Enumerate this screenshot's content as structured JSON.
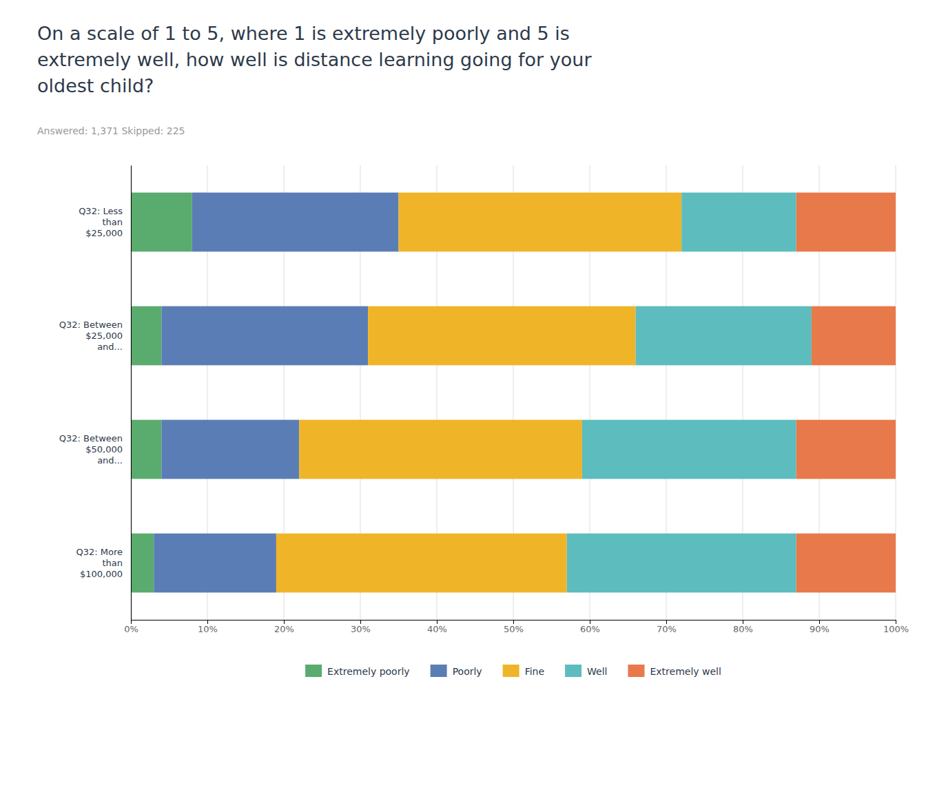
{
  "chart_data": {
    "type": "bar",
    "orientation": "horizontal",
    "stacked": true,
    "title": "On a scale of 1 to 5, where 1 is extremely poorly and 5 is\nextremely well, how well is distance learning going for your\noldest child?",
    "subtitle": "Answered: 1,371    Skipped: 225",
    "categories": [
      "Q32: Less\nthan\n$25,000",
      "Q32: Between\n$25,000\nand...",
      "Q32: Between\n$50,000\nand...",
      "Q32: More\nthan\n$100,000"
    ],
    "series": [
      {
        "name": "Extremely poorly",
        "color": "#5aab6e",
        "values": [
          8.0,
          4.0,
          4.0,
          3.0
        ]
      },
      {
        "name": "Poorly",
        "color": "#5a7db5",
        "values": [
          27.0,
          27.0,
          18.0,
          16.0
        ]
      },
      {
        "name": "Fine",
        "color": "#f0b429",
        "values": [
          37.0,
          35.0,
          37.0,
          38.0
        ]
      },
      {
        "name": "Well",
        "color": "#5dbcbe",
        "values": [
          15.0,
          23.0,
          28.0,
          30.0
        ]
      },
      {
        "name": "Extremely well",
        "color": "#e8794a",
        "values": [
          13.0,
          11.0,
          13.0,
          13.0
        ]
      }
    ],
    "xlim": [
      0,
      100
    ],
    "xticks": [
      {
        "value": 0,
        "label": "0%"
      },
      {
        "value": 10,
        "label": "10%"
      },
      {
        "value": 20,
        "label": "20%"
      },
      {
        "value": 30,
        "label": "30%"
      },
      {
        "value": 40,
        "label": "40%"
      },
      {
        "value": 50,
        "label": "50%"
      },
      {
        "value": 60,
        "label": "60%"
      },
      {
        "value": 70,
        "label": "70%"
      },
      {
        "value": 80,
        "label": "80%"
      },
      {
        "value": 90,
        "label": "90%"
      },
      {
        "value": 100,
        "label": "100%"
      }
    ],
    "grid": true,
    "legend": "bottom"
  }
}
